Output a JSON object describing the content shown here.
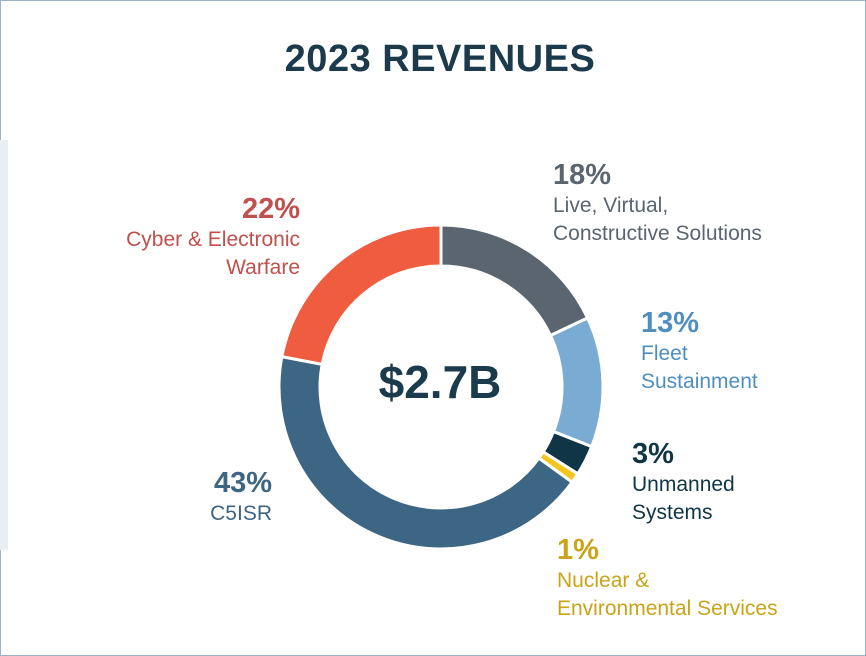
{
  "title": "2023 REVENUES",
  "center_label": "$2.7B",
  "chart_data": {
    "type": "pie",
    "title": "2023 REVENUES",
    "total_label": "$2.7B",
    "slices": [
      {
        "pct_label": "18%",
        "value": 18,
        "label_lines": [
          "Live, Virtual,",
          "Constructive Solutions"
        ],
        "color": "#5a6570"
      },
      {
        "pct_label": "13%",
        "value": 13,
        "label_lines": [
          "Fleet",
          "Sustainment"
        ],
        "color": "#7aabd2"
      },
      {
        "pct_label": "3%",
        "value": 3,
        "label_lines": [
          "Unmanned",
          "Systems"
        ],
        "color": "#0f3547"
      },
      {
        "pct_label": "1%",
        "value": 1,
        "label_lines": [
          "Nuclear &",
          "Environmental Services"
        ],
        "color": "#f2c61f"
      },
      {
        "pct_label": "43%",
        "value": 43,
        "label_lines": [
          "C5ISR"
        ],
        "color": "#3d6584"
      },
      {
        "pct_label": "22%",
        "value": 22,
        "label_lines": [
          "Cyber & Electronic",
          "Warfare"
        ],
        "color": "#ef5c40"
      }
    ],
    "label_colors": [
      "#5a6570",
      "#4f8ec0",
      "#0f3547",
      "#c9a418",
      "#3d6584",
      "#c0504d"
    ]
  }
}
